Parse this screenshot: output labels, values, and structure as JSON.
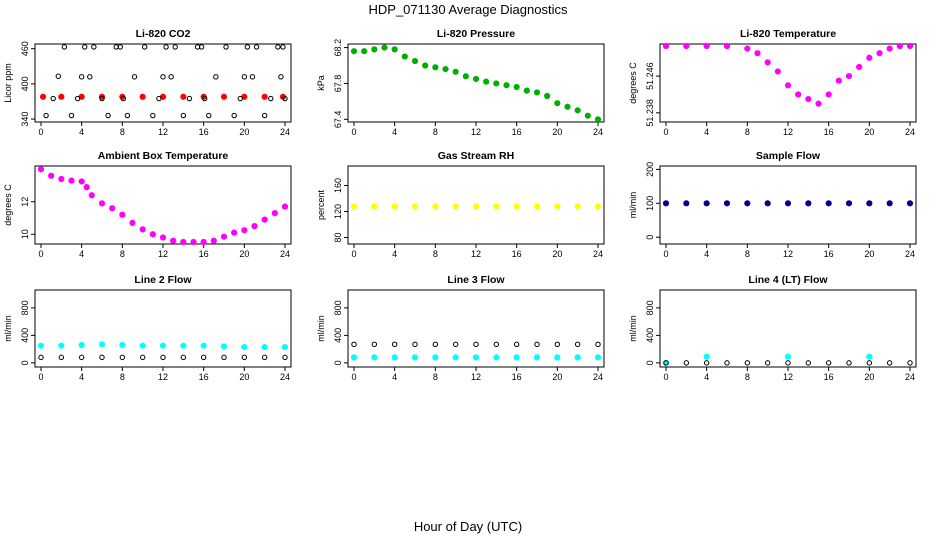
{
  "figure": {
    "title": "HDP_071130  Average Diagnostics",
    "xlabel": "Hour of Day (UTC)",
    "x_ticks": [
      0,
      4,
      8,
      12,
      16,
      20,
      24
    ],
    "x_range": [
      0,
      24
    ]
  },
  "chart_data": [
    {
      "type": "scatter",
      "title": "Li-820 CO2",
      "ylabel": "Licor ppm",
      "y_ticks": [
        340,
        400,
        460
      ],
      "ylim": [
        335,
        468
      ],
      "series": [
        {
          "name": "mean",
          "color": "#ff0000",
          "points": [
            [
              0.2,
              378
            ],
            [
              2,
              378
            ],
            [
              4,
              378
            ],
            [
              6,
              378
            ],
            [
              8,
              378
            ],
            [
              10,
              378
            ],
            [
              12,
              378
            ],
            [
              14,
              378
            ],
            [
              16,
              378
            ],
            [
              18,
              378
            ],
            [
              20,
              378
            ],
            [
              22,
              378
            ],
            [
              23.8,
              378
            ]
          ]
        },
        {
          "name": "min/max",
          "color": "#000000",
          "points": [
            [
              0.5,
              346
            ],
            [
              1.2,
              375
            ],
            [
              1.7,
              413
            ],
            [
              2.3,
              463
            ],
            [
              3,
              346
            ],
            [
              3.6,
              375
            ],
            [
              4,
              412
            ],
            [
              4.3,
              463
            ],
            [
              4.8,
              412
            ],
            [
              5.2,
              463
            ],
            [
              6,
              375
            ],
            [
              6.6,
              346
            ],
            [
              7.4,
              463
            ],
            [
              7.8,
              463
            ],
            [
              8.1,
              375
            ],
            [
              8.5,
              346
            ],
            [
              9.2,
              412
            ],
            [
              10.2,
              463
            ],
            [
              11,
              346
            ],
            [
              11.6,
              375
            ],
            [
              12,
              412
            ],
            [
              12.3,
              463
            ],
            [
              12.8,
              412
            ],
            [
              13.2,
              463
            ],
            [
              14,
              346
            ],
            [
              14.6,
              375
            ],
            [
              15.4,
              463
            ],
            [
              15.8,
              463
            ],
            [
              16.1,
              375
            ],
            [
              16.5,
              346
            ],
            [
              17.2,
              412
            ],
            [
              18.2,
              463
            ],
            [
              19,
              346
            ],
            [
              19.6,
              375
            ],
            [
              20,
              412
            ],
            [
              20.3,
              463
            ],
            [
              20.8,
              412
            ],
            [
              21.2,
              463
            ],
            [
              22,
              346
            ],
            [
              22.6,
              375
            ],
            [
              23.3,
              463
            ],
            [
              23.6,
              412
            ],
            [
              23.8,
              463
            ],
            [
              24,
              375
            ]
          ]
        }
      ]
    },
    {
      "type": "scatter",
      "title": "Li-820 Pressure",
      "ylabel": "kPa",
      "y_ticks": [
        67.4,
        67.8,
        68.2
      ],
      "ylim": [
        67.37,
        68.24
      ],
      "series": [
        {
          "name": "values",
          "color": "#00b000",
          "points": [
            [
              0,
              68.16
            ],
            [
              1,
              68.16
            ],
            [
              2,
              68.18
            ],
            [
              3,
              68.2
            ],
            [
              4,
              68.18
            ],
            [
              5,
              68.1
            ],
            [
              6,
              68.05
            ],
            [
              7,
              68.0
            ],
            [
              8,
              67.98
            ],
            [
              9,
              67.96
            ],
            [
              10,
              67.93
            ],
            [
              11,
              67.88
            ],
            [
              12,
              67.85
            ],
            [
              13,
              67.82
            ],
            [
              14,
              67.8
            ],
            [
              15,
              67.78
            ],
            [
              16,
              67.76
            ],
            [
              17,
              67.72
            ],
            [
              18,
              67.7
            ],
            [
              19,
              67.66
            ],
            [
              20,
              67.58
            ],
            [
              21,
              67.54
            ],
            [
              22,
              67.5
            ],
            [
              23,
              67.44
            ],
            [
              24,
              67.4
            ]
          ]
        }
      ]
    },
    {
      "type": "scatter",
      "title": "Li-820 Temperature",
      "ylabel": "degrees C",
      "y_ticks": [
        51.238,
        51.246
      ],
      "ylim": [
        51.236,
        51.253
      ],
      "series": [
        {
          "name": "values",
          "color": "#ff00ff",
          "points": [
            [
              0,
              51.253
            ],
            [
              2,
              51.253
            ],
            [
              4,
              51.253
            ],
            [
              6,
              51.253
            ],
            [
              8,
              51.252
            ],
            [
              9,
              51.251
            ],
            [
              10,
              51.249
            ],
            [
              11,
              51.247
            ],
            [
              12,
              51.244
            ],
            [
              13,
              51.242
            ],
            [
              14,
              51.241
            ],
            [
              15,
              51.24
            ],
            [
              16,
              51.242
            ],
            [
              17,
              51.245
            ],
            [
              18,
              51.246
            ],
            [
              19,
              51.248
            ],
            [
              20,
              51.25
            ],
            [
              21,
              51.251
            ],
            [
              22,
              51.252
            ],
            [
              23,
              51.253
            ],
            [
              24,
              51.253
            ]
          ]
        }
      ]
    },
    {
      "type": "scatter",
      "title": "Ambient Box Temperature",
      "ylabel": "degrees C",
      "y_ticks": [
        10,
        12
      ],
      "ylim": [
        9.4,
        14.2
      ],
      "series": [
        {
          "name": "values",
          "color": "#ff00ff",
          "points": [
            [
              0,
              14.0
            ],
            [
              1,
              13.6
            ],
            [
              2,
              13.4
            ],
            [
              3,
              13.3
            ],
            [
              4,
              13.25
            ],
            [
              4.5,
              12.9
            ],
            [
              5,
              12.4
            ],
            [
              6,
              11.9
            ],
            [
              7,
              11.6
            ],
            [
              8,
              11.2
            ],
            [
              9,
              10.7
            ],
            [
              10,
              10.3
            ],
            [
              11,
              10.0
            ],
            [
              12,
              9.8
            ],
            [
              13,
              9.6
            ],
            [
              14,
              9.5
            ],
            [
              15,
              9.45
            ],
            [
              16,
              9.5
            ],
            [
              17,
              9.6
            ],
            [
              18,
              9.85
            ],
            [
              19,
              10.1
            ],
            [
              20,
              10.25
            ],
            [
              21,
              10.5
            ],
            [
              22,
              10.9
            ],
            [
              23,
              11.3
            ],
            [
              24,
              11.7
            ]
          ]
        }
      ]
    },
    {
      "type": "scatter",
      "title": "Gas Stream RH",
      "ylabel": "percent",
      "y_ticks": [
        80,
        120,
        160
      ],
      "ylim": [
        70,
        190
      ],
      "series": [
        {
          "name": "values",
          "color": "#ffff00",
          "points": [
            [
              0,
              128
            ],
            [
              2,
              128
            ],
            [
              4,
              128
            ],
            [
              6,
              128
            ],
            [
              8,
              128
            ],
            [
              10,
              128
            ],
            [
              12,
              128
            ],
            [
              14,
              128
            ],
            [
              16,
              128
            ],
            [
              18,
              128
            ],
            [
              20,
              128
            ],
            [
              22,
              128
            ],
            [
              24,
              128
            ]
          ]
        }
      ]
    },
    {
      "type": "scatter",
      "title": "Sample Flow",
      "ylabel": "ml/min",
      "y_ticks": [
        0,
        100,
        200
      ],
      "ylim": [
        -20,
        210
      ],
      "series": [
        {
          "name": "values",
          "color": "#00008b",
          "points": [
            [
              0,
              100
            ],
            [
              2,
              100
            ],
            [
              4,
              100
            ],
            [
              6,
              100
            ],
            [
              8,
              100
            ],
            [
              10,
              100
            ],
            [
              12,
              100
            ],
            [
              14,
              100
            ],
            [
              16,
              100
            ],
            [
              18,
              100
            ],
            [
              20,
              100
            ],
            [
              22,
              100
            ],
            [
              24,
              100
            ]
          ]
        }
      ]
    },
    {
      "type": "scatter",
      "title": "Line 2 Flow",
      "ylabel": "ml/min",
      "y_ticks": [
        0,
        400,
        800
      ],
      "ylim": [
        -60,
        1060
      ],
      "series": [
        {
          "name": "line",
          "color": "#00ffff",
          "points": [
            [
              0,
              250
            ],
            [
              2,
              250
            ],
            [
              4,
              260
            ],
            [
              6,
              270
            ],
            [
              8,
              260
            ],
            [
              10,
              250
            ],
            [
              12,
              250
            ],
            [
              14,
              250
            ],
            [
              16,
              250
            ],
            [
              18,
              240
            ],
            [
              20,
              230
            ],
            [
              22,
              230
            ],
            [
              24,
              230
            ]
          ]
        },
        {
          "name": "reference",
          "color": "#000000",
          "points": [
            [
              0,
              80
            ],
            [
              2,
              80
            ],
            [
              4,
              80
            ],
            [
              6,
              80
            ],
            [
              8,
              80
            ],
            [
              10,
              80
            ],
            [
              12,
              80
            ],
            [
              14,
              80
            ],
            [
              16,
              80
            ],
            [
              18,
              80
            ],
            [
              20,
              80
            ],
            [
              22,
              80
            ],
            [
              24,
              80
            ]
          ]
        }
      ]
    },
    {
      "type": "scatter",
      "title": "Line 3 Flow",
      "ylabel": "ml/min",
      "y_ticks": [
        0,
        400,
        800
      ],
      "ylim": [
        -60,
        1060
      ],
      "series": [
        {
          "name": "line",
          "color": "#00ffff",
          "points": [
            [
              0,
              80
            ],
            [
              2,
              80
            ],
            [
              4,
              80
            ],
            [
              6,
              80
            ],
            [
              8,
              80
            ],
            [
              10,
              80
            ],
            [
              12,
              80
            ],
            [
              14,
              80
            ],
            [
              16,
              80
            ],
            [
              18,
              80
            ],
            [
              20,
              80
            ],
            [
              22,
              80
            ],
            [
              24,
              80
            ]
          ]
        },
        {
          "name": "reference",
          "color": "#000000",
          "points": [
            [
              0,
              270
            ],
            [
              2,
              270
            ],
            [
              4,
              270
            ],
            [
              6,
              270
            ],
            [
              8,
              270
            ],
            [
              10,
              270
            ],
            [
              12,
              270
            ],
            [
              14,
              270
            ],
            [
              16,
              270
            ],
            [
              18,
              270
            ],
            [
              20,
              270
            ],
            [
              22,
              270
            ],
            [
              24,
              270
            ]
          ]
        }
      ]
    },
    {
      "type": "scatter",
      "title": "Line 4 (LT) Flow",
      "ylabel": "ml/min",
      "y_ticks": [
        0,
        400,
        800
      ],
      "ylim": [
        -60,
        1060
      ],
      "series": [
        {
          "name": "line",
          "color": "#00ffff",
          "points": [
            [
              0,
              0
            ],
            [
              4,
              90
            ],
            [
              12,
              90
            ],
            [
              20,
              90
            ]
          ]
        },
        {
          "name": "reference",
          "color": "#000000",
          "points": [
            [
              0,
              0
            ],
            [
              2,
              0
            ],
            [
              4,
              0
            ],
            [
              6,
              0
            ],
            [
              8,
              0
            ],
            [
              10,
              0
            ],
            [
              12,
              0
            ],
            [
              14,
              0
            ],
            [
              16,
              0
            ],
            [
              18,
              0
            ],
            [
              20,
              0
            ],
            [
              22,
              0
            ],
            [
              24,
              0
            ]
          ]
        }
      ]
    }
  ]
}
